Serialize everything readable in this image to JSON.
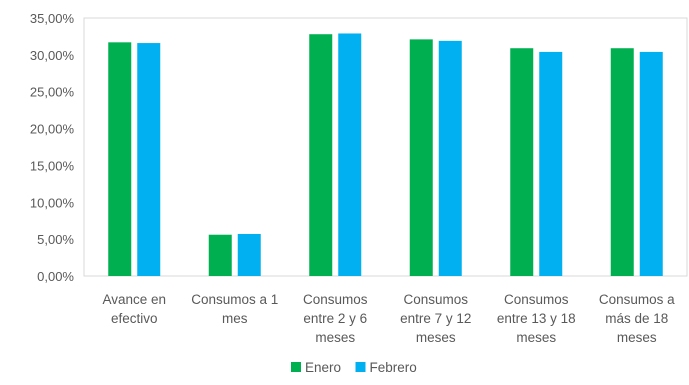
{
  "chart_data": {
    "type": "bar",
    "title": "",
    "xlabel": "",
    "ylabel": "",
    "categories": [
      [
        "Avance en",
        "efectivo"
      ],
      [
        "Consumos a 1",
        "mes"
      ],
      [
        "Consumos",
        "entre 2 y 6",
        "meses"
      ],
      [
        "Consumos",
        "entre 7 y 12",
        "meses"
      ],
      [
        "Consumos",
        "entre 13 y 18",
        "meses"
      ],
      [
        "Consumos a",
        "más de 18",
        "meses"
      ]
    ],
    "series": [
      {
        "name": "Enero",
        "color": "#00B050",
        "values": [
          31.7,
          5.6,
          32.8,
          32.1,
          30.9,
          30.9
        ]
      },
      {
        "name": "Febrero",
        "color": "#00B0F0",
        "values": [
          31.6,
          5.7,
          32.9,
          31.9,
          30.4,
          30.4
        ]
      }
    ],
    "ylim": [
      0,
      35
    ],
    "yticks": [
      "0,00%",
      "5,00%",
      "10,00%",
      "15,00%",
      "20,00%",
      "25,00%",
      "30,00%",
      "35,00%"
    ],
    "grid": false,
    "legend": "bottom",
    "gridline_color": "#D9D9D9",
    "axis_color": "#D9D9D9"
  }
}
